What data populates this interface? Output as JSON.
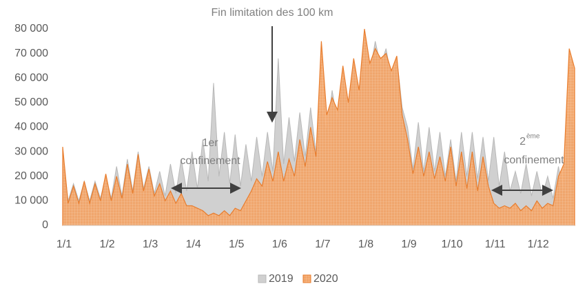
{
  "chart_data": {
    "type": "area",
    "categories": [
      "1/1",
      null,
      null,
      null,
      null,
      null,
      null,
      null,
      "1/2",
      null,
      null,
      null,
      null,
      null,
      null,
      null,
      "1/3",
      null,
      null,
      null,
      null,
      null,
      null,
      null,
      "1/4",
      null,
      null,
      null,
      null,
      null,
      null,
      null,
      "1/5",
      null,
      null,
      null,
      null,
      null,
      null,
      null,
      "1/6",
      null,
      null,
      null,
      null,
      null,
      null,
      null,
      "1/7",
      null,
      null,
      null,
      null,
      null,
      null,
      null,
      "1/8",
      null,
      null,
      null,
      null,
      null,
      null,
      null,
      "1/9",
      null,
      null,
      null,
      null,
      null,
      null,
      null,
      "1/10",
      null,
      null,
      null,
      null,
      null,
      null,
      null,
      "1/11",
      null,
      null,
      null,
      null,
      null,
      null,
      null,
      "1/12",
      null,
      null,
      null,
      null,
      null,
      null,
      null
    ],
    "series": [
      {
        "name": "2019",
        "color": "#d0d0d0",
        "values": [
          30000,
          10000,
          17000,
          10000,
          18000,
          10000,
          18000,
          11000,
          20000,
          11000,
          24000,
          12000,
          27000,
          14000,
          30000,
          15000,
          24000,
          13000,
          22000,
          12000,
          25000,
          13000,
          27000,
          14000,
          30000,
          15000,
          35000,
          18000,
          58000,
          20000,
          38000,
          17000,
          37000,
          16000,
          33000,
          18000,
          36000,
          20000,
          38000,
          22000,
          68000,
          25000,
          44000,
          26000,
          46000,
          28000,
          48000,
          30000,
          47000,
          38000,
          55000,
          42000,
          60000,
          45000,
          65000,
          50000,
          76000,
          62000,
          75000,
          65000,
          72000,
          60000,
          68000,
          48000,
          40000,
          23000,
          42000,
          22000,
          40000,
          22000,
          38000,
          20000,
          35000,
          18000,
          38000,
          20000,
          38000,
          19000,
          36000,
          18000,
          36000,
          16000,
          30000,
          14000,
          22000,
          13000,
          25000,
          12000,
          22000,
          12000,
          20000,
          11000,
          24000,
          12000,
          45000,
          38000
        ]
      },
      {
        "name": "2020",
        "color": "#f0a060",
        "values": [
          32000,
          9000,
          16000,
          9000,
          18000,
          9000,
          17000,
          10000,
          21000,
          10000,
          20000,
          11000,
          25000,
          13000,
          29000,
          14000,
          23000,
          12000,
          17000,
          10000,
          14000,
          9000,
          13000,
          8000,
          8000,
          7000,
          6000,
          4000,
          5000,
          4000,
          6000,
          4000,
          7000,
          6000,
          10000,
          14000,
          19000,
          16000,
          26000,
          18000,
          30000,
          18000,
          27000,
          20000,
          35000,
          24000,
          40000,
          28000,
          75000,
          45000,
          52000,
          47000,
          65000,
          50000,
          68000,
          55000,
          80000,
          66000,
          72000,
          68000,
          70000,
          63000,
          69000,
          45000,
          35000,
          21000,
          32000,
          20000,
          30000,
          19000,
          28000,
          18000,
          32000,
          16000,
          30000,
          15000,
          30000,
          14000,
          28000,
          16000,
          9000,
          7000,
          8000,
          7000,
          9000,
          6000,
          8000,
          6000,
          10000,
          7000,
          9000,
          8000,
          20000,
          25000,
          72000,
          64000
        ]
      }
    ],
    "ylim": [
      0,
      80000
    ],
    "yticks": [
      0,
      {
        "value": 10000,
        "label": "10 000"
      },
      {
        "value": 20000,
        "label": "20 000"
      },
      {
        "value": 30000,
        "label": "30 000"
      },
      {
        "value": 40000,
        "label": "40 000"
      },
      {
        "value": 50000,
        "label": "50 000"
      },
      {
        "value": 60000,
        "label": "60 000"
      },
      {
        "value": 70000,
        "label": "70 000"
      },
      {
        "value": 80000,
        "label": "80 000"
      }
    ],
    "grid": false,
    "legend": "bottom",
    "annotations": [
      {
        "text": "Fin limitation des 100 km"
      },
      {
        "lines": [
          "1er",
          "confinement"
        ]
      },
      {
        "text": "2",
        "sup": "ème",
        "line2": "confinement"
      }
    ]
  }
}
